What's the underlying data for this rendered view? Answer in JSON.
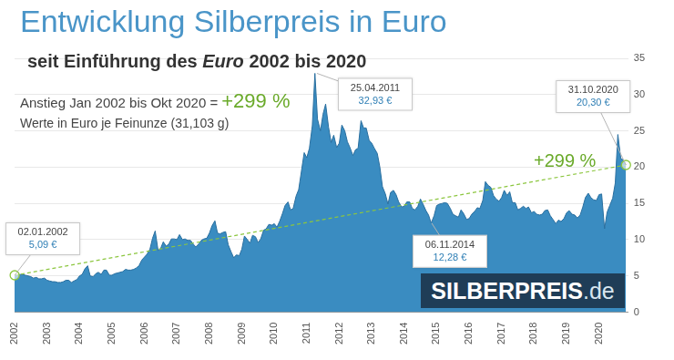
{
  "chart_data": {
    "type": "area",
    "title": "Entwicklung Silberpreis in Euro",
    "subtitle": [
      "seit Einführung des",
      "Euro",
      "2002 bis 2020"
    ],
    "annotations": [
      {
        "text": "Anstieg Jan 2002 bis Okt 2020 =",
        "highlight": "+299 %"
      },
      {
        "text": "Werte in Euro je Feinunze (31,103 g)"
      }
    ],
    "watermark": "SILBERPREIS.de",
    "color": "#3a8cc1",
    "x": [
      2002,
      2002.08,
      2002.17,
      2002.25,
      2002.33,
      2002.42,
      2002.5,
      2002.58,
      2002.67,
      2002.75,
      2002.83,
      2002.92,
      2003,
      2003.08,
      2003.17,
      2003.25,
      2003.33,
      2003.42,
      2003.5,
      2003.58,
      2003.67,
      2003.75,
      2003.83,
      2003.92,
      2004,
      2004.08,
      2004.17,
      2004.25,
      2004.33,
      2004.42,
      2004.5,
      2004.58,
      2004.67,
      2004.75,
      2004.83,
      2004.92,
      2005,
      2005.08,
      2005.17,
      2005.25,
      2005.33,
      2005.42,
      2005.5,
      2005.58,
      2005.67,
      2005.75,
      2005.83,
      2005.92,
      2006,
      2006.08,
      2006.17,
      2006.25,
      2006.33,
      2006.42,
      2006.5,
      2006.58,
      2006.67,
      2006.75,
      2006.83,
      2006.92,
      2007,
      2007.08,
      2007.17,
      2007.25,
      2007.33,
      2007.42,
      2007.5,
      2007.58,
      2007.67,
      2007.75,
      2007.83,
      2007.92,
      2008,
      2008.08,
      2008.17,
      2008.25,
      2008.33,
      2008.42,
      2008.5,
      2008.58,
      2008.67,
      2008.75,
      2008.83,
      2008.92,
      2009,
      2009.08,
      2009.17,
      2009.25,
      2009.33,
      2009.42,
      2009.5,
      2009.58,
      2009.67,
      2009.75,
      2009.83,
      2009.92,
      2010,
      2010.08,
      2010.17,
      2010.25,
      2010.33,
      2010.42,
      2010.5,
      2010.58,
      2010.67,
      2010.75,
      2010.83,
      2010.92,
      2011,
      2011.08,
      2011.17,
      2011.25,
      2011.33,
      2011.42,
      2011.5,
      2011.58,
      2011.67,
      2011.75,
      2011.83,
      2011.92,
      2012,
      2012.08,
      2012.17,
      2012.25,
      2012.33,
      2012.42,
      2012.5,
      2012.58,
      2012.67,
      2012.75,
      2012.83,
      2012.92,
      2013,
      2013.08,
      2013.17,
      2013.25,
      2013.33,
      2013.42,
      2013.5,
      2013.58,
      2013.67,
      2013.75,
      2013.83,
      2013.92,
      2014,
      2014.08,
      2014.17,
      2014.25,
      2014.33,
      2014.42,
      2014.5,
      2014.58,
      2014.67,
      2014.75,
      2014.83,
      2014.92,
      2015,
      2015.08,
      2015.17,
      2015.25,
      2015.33,
      2015.42,
      2015.5,
      2015.58,
      2015.67,
      2015.75,
      2015.83,
      2015.92,
      2016,
      2016.08,
      2016.17,
      2016.25,
      2016.33,
      2016.42,
      2016.5,
      2016.58,
      2016.67,
      2016.75,
      2016.83,
      2016.92,
      2017,
      2017.08,
      2017.17,
      2017.25,
      2017.33,
      2017.42,
      2017.5,
      2017.58,
      2017.67,
      2017.75,
      2017.83,
      2017.92,
      2018,
      2018.08,
      2018.17,
      2018.25,
      2018.33,
      2018.42,
      2018.5,
      2018.58,
      2018.67,
      2018.75,
      2018.83,
      2018.92,
      2019,
      2019.08,
      2019.17,
      2019.25,
      2019.33,
      2019.42,
      2019.5,
      2019.58,
      2019.67,
      2019.75,
      2019.83,
      2019.92,
      2020,
      2020.08,
      2020.17,
      2020.25,
      2020.33,
      2020.42,
      2020.5,
      2020.58,
      2020.67,
      2020.75,
      2020.83
    ],
    "values": [
      5.09,
      5.1,
      5.2,
      5.2,
      5.1,
      5.0,
      4.9,
      4.7,
      4.8,
      4.6,
      4.6,
      4.7,
      4.4,
      4.3,
      4.2,
      4.2,
      4.1,
      4.1,
      4.2,
      4.4,
      4.4,
      4.1,
      4.3,
      4.5,
      5.0,
      5.2,
      6.0,
      6.4,
      5.0,
      4.9,
      5.3,
      5.5,
      5.2,
      5.8,
      5.8,
      5.1,
      5.1,
      5.3,
      5.4,
      5.5,
      5.6,
      5.9,
      5.8,
      5.8,
      5.9,
      6.1,
      6.4,
      7.2,
      7.6,
      8.0,
      8.7,
      10.2,
      11.2,
      8.5,
      8.8,
      9.7,
      9.1,
      9.4,
      10.1,
      10.1,
      10.0,
      10.7,
      10.0,
      10.1,
      9.9,
      9.9,
      9.4,
      9.0,
      9.4,
      9.9,
      10.1,
      10.2,
      10.9,
      11.9,
      12.6,
      10.9,
      10.8,
      11.0,
      11.1,
      9.3,
      8.3,
      7.5,
      7.9,
      7.8,
      8.7,
      10.5,
      10.0,
      9.5,
      10.6,
      10.4,
      9.6,
      10.1,
      11.3,
      11.5,
      12.1,
      12.0,
      12.2,
      11.7,
      12.6,
      13.6,
      14.7,
      15.2,
      14.1,
      14.3,
      16.0,
      16.9,
      19.3,
      22.0,
      21.3,
      22.6,
      25.7,
      32.93,
      26.6,
      25.0,
      27.3,
      28.7,
      25.5,
      23.4,
      24.4,
      22.7,
      23.3,
      25.8,
      25.0,
      23.5,
      22.7,
      21.6,
      22.4,
      22.6,
      26.4,
      25.4,
      25.4,
      23.7,
      23.3,
      22.6,
      21.9,
      20.0,
      17.3,
      16.3,
      14.9,
      16.5,
      16.8,
      16.2,
      15.2,
      14.5,
      14.6,
      15.2,
      15.2,
      14.3,
      14.1,
      14.6,
      15.6,
      14.9,
      14.0,
      13.4,
      12.28,
      13.3,
      14.7,
      14.9,
      15.0,
      15.1,
      15.0,
      14.3,
      13.5,
      13.3,
      13.1,
      14.1,
      13.6,
      12.8,
      12.9,
      13.5,
      13.9,
      14.4,
      14.3,
      15.4,
      18.0,
      17.5,
      17.2,
      16.1,
      15.6,
      15.3,
      15.8,
      16.8,
      16.1,
      16.6,
      15.1,
      15.1,
      14.1,
      14.3,
      14.6,
      14.3,
      14.5,
      13.7,
      13.9,
      13.5,
      13.4,
      13.5,
      14.0,
      14.1,
      13.3,
      12.8,
      12.2,
      12.7,
      12.5,
      12.9,
      13.7,
      14.0,
      13.5,
      13.4,
      13.0,
      13.4,
      14.5,
      15.8,
      16.4,
      15.8,
      15.5,
      15.4,
      16.2,
      16.3,
      11.5,
      13.8,
      14.7,
      15.7,
      17.8,
      24.5,
      21.2,
      21.0,
      20.3
    ],
    "xlim": [
      2002,
      2020.9
    ],
    "xticks": [
      2002,
      2003,
      2004,
      2005,
      2006,
      2007,
      2008,
      2009,
      2010,
      2011,
      2012,
      2013,
      2014,
      2015,
      2016,
      2017,
      2018,
      2019,
      2020
    ],
    "ylim": [
      0,
      35
    ],
    "yticks": [
      0,
      5,
      10,
      15,
      20,
      25,
      30,
      35
    ],
    "grid": true,
    "callouts": [
      {
        "date": "02.01.2002",
        "value": 5.09,
        "label": "5,09 €"
      },
      {
        "date": "25.04.2011",
        "value": 32.93,
        "label": "32,93 €"
      },
      {
        "date": "06.11.2014",
        "value": 12.28,
        "label": "12,28 €"
      },
      {
        "date": "31.10.2020",
        "value": 20.3,
        "label": "20,30 €"
      }
    ],
    "trend": {
      "label": "+299 %",
      "dates": [
        "02.01.2002",
        "31.10.2020"
      ],
      "values": [
        5.09,
        20.3
      ],
      "color": "#8cc63f",
      "line_style": "dashed",
      "marker": "circle"
    }
  }
}
